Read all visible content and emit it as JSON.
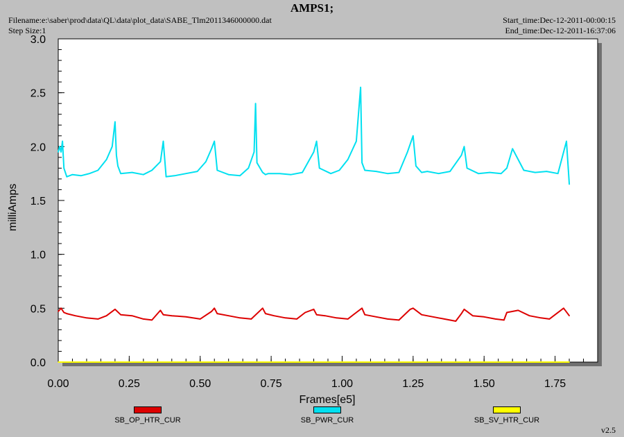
{
  "header": {
    "title": "AMPS1;",
    "filename": "Filename:e:\\saber\\prod\\data\\QL\\data\\plot_data\\SABE_Tlm2011346000000.dat",
    "step_size": "Step Size:1",
    "start_time": "Start_time:Dec-12-2011-00:00:15",
    "end_time": "End_time:Dec-12-2011-16:37:06"
  },
  "footer": {
    "version": "v2.5"
  },
  "chart_data": {
    "type": "line",
    "title": "AMPS1;",
    "xlabel": "Frames[e5]",
    "ylabel": "milliAmps",
    "xlim": [
      0,
      1.9
    ],
    "ylim": [
      0,
      3.0
    ],
    "xticks": [
      "0.00",
      "0.25",
      "0.50",
      "0.75",
      "1.00",
      "1.25",
      "1.50",
      "1.75"
    ],
    "yticks": [
      "0.0",
      "0.5",
      "1.0",
      "1.5",
      "2.0",
      "2.5",
      "3.0"
    ],
    "legend_position": "bottom",
    "series": [
      {
        "name": "SB_OP_HTR_CUR",
        "color": "#dd0000",
        "x": [
          0.0,
          0.01,
          0.02,
          0.03,
          0.06,
          0.1,
          0.14,
          0.17,
          0.2,
          0.22,
          0.26,
          0.3,
          0.33,
          0.36,
          0.37,
          0.4,
          0.45,
          0.5,
          0.54,
          0.55,
          0.56,
          0.6,
          0.64,
          0.68,
          0.72,
          0.73,
          0.76,
          0.8,
          0.84,
          0.87,
          0.9,
          0.91,
          0.94,
          0.98,
          1.02,
          1.05,
          1.07,
          1.08,
          1.12,
          1.16,
          1.2,
          1.24,
          1.25,
          1.28,
          1.32,
          1.36,
          1.4,
          1.42,
          1.43,
          1.46,
          1.5,
          1.54,
          1.57,
          1.58,
          1.62,
          1.66,
          1.7,
          1.73,
          1.77,
          1.78,
          1.8
        ],
        "values": [
          0.47,
          0.5,
          0.46,
          0.45,
          0.43,
          0.41,
          0.4,
          0.43,
          0.49,
          0.44,
          0.43,
          0.4,
          0.39,
          0.48,
          0.44,
          0.43,
          0.42,
          0.4,
          0.47,
          0.5,
          0.45,
          0.43,
          0.41,
          0.4,
          0.5,
          0.45,
          0.43,
          0.41,
          0.4,
          0.46,
          0.49,
          0.44,
          0.43,
          0.41,
          0.4,
          0.46,
          0.5,
          0.44,
          0.42,
          0.4,
          0.39,
          0.49,
          0.5,
          0.44,
          0.42,
          0.4,
          0.38,
          0.45,
          0.49,
          0.43,
          0.42,
          0.4,
          0.39,
          0.46,
          0.48,
          0.43,
          0.41,
          0.4,
          0.48,
          0.5,
          0.43
        ]
      },
      {
        "name": "SB_PWR_CUR",
        "color": "#00e0f0",
        "x": [
          0.0,
          0.005,
          0.01,
          0.015,
          0.02,
          0.03,
          0.05,
          0.08,
          0.11,
          0.14,
          0.17,
          0.19,
          0.2,
          0.205,
          0.21,
          0.22,
          0.26,
          0.3,
          0.33,
          0.36,
          0.37,
          0.38,
          0.41,
          0.45,
          0.49,
          0.52,
          0.54,
          0.55,
          0.56,
          0.6,
          0.64,
          0.67,
          0.69,
          0.695,
          0.7,
          0.72,
          0.73,
          0.74,
          0.78,
          0.82,
          0.86,
          0.9,
          0.91,
          0.92,
          0.96,
          0.99,
          1.02,
          1.05,
          1.065,
          1.07,
          1.08,
          1.12,
          1.16,
          1.2,
          1.23,
          1.25,
          1.26,
          1.28,
          1.3,
          1.34,
          1.38,
          1.42,
          1.43,
          1.44,
          1.48,
          1.52,
          1.56,
          1.58,
          1.6,
          1.64,
          1.68,
          1.72,
          1.76,
          1.78,
          1.79,
          1.8
        ],
        "values": [
          1.95,
          2.0,
          1.95,
          2.05,
          1.8,
          1.72,
          1.74,
          1.73,
          1.75,
          1.78,
          1.88,
          2.0,
          2.23,
          1.92,
          1.82,
          1.75,
          1.76,
          1.74,
          1.78,
          1.86,
          2.05,
          1.72,
          1.73,
          1.75,
          1.77,
          1.86,
          1.98,
          2.05,
          1.78,
          1.74,
          1.73,
          1.8,
          1.95,
          2.4,
          1.85,
          1.76,
          1.74,
          1.75,
          1.75,
          1.74,
          1.76,
          1.95,
          2.05,
          1.8,
          1.75,
          1.78,
          1.88,
          2.05,
          2.55,
          1.85,
          1.78,
          1.77,
          1.75,
          1.76,
          1.95,
          2.1,
          1.82,
          1.76,
          1.77,
          1.75,
          1.77,
          1.92,
          2.0,
          1.8,
          1.75,
          1.76,
          1.75,
          1.8,
          1.98,
          1.78,
          1.76,
          1.77,
          1.75,
          1.95,
          2.05,
          1.65
        ]
      },
      {
        "name": "SB_SV_HTR_CUR",
        "color": "#ffff00",
        "x": [
          0.0,
          1.8
        ],
        "values": [
          0.0,
          0.0
        ]
      }
    ]
  }
}
